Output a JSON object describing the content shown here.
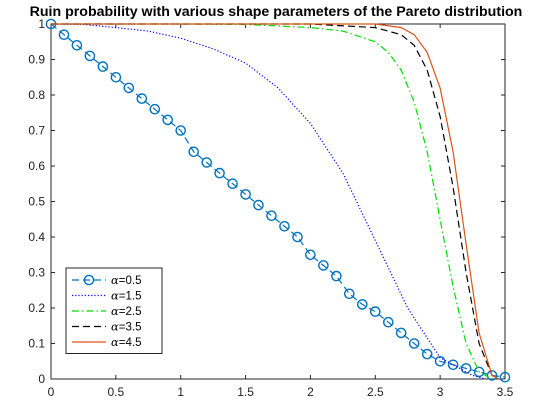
{
  "chart_data": {
    "type": "line",
    "title": "Ruin probability with various shape parameters of the Pareto distribution",
    "xlabel": "",
    "ylabel": "",
    "xlim": [
      0,
      3.5
    ],
    "ylim": [
      0,
      1
    ],
    "xticks": [
      "0",
      "0.5",
      "1",
      "1.5",
      "2",
      "2.5",
      "3",
      "3.5"
    ],
    "yticks": [
      "0",
      "0.1",
      "0.2",
      "0.3",
      "0.4",
      "0.5",
      "0.6",
      "0.7",
      "0.8",
      "0.9",
      "1"
    ],
    "grid": false,
    "legend_position": "bottom-left",
    "series": [
      {
        "name": "=0.5",
        "legend_symbol": "α",
        "color": "#0072BD",
        "line_style": "dashed",
        "marker": "circle",
        "x": [
          0,
          0.1,
          0.2,
          0.3,
          0.4,
          0.5,
          0.6,
          0.7,
          0.8,
          0.9,
          1.0,
          1.1,
          1.2,
          1.3,
          1.4,
          1.5,
          1.6,
          1.7,
          1.8,
          1.9,
          2.0,
          2.1,
          2.2,
          2.3,
          2.4,
          2.5,
          2.6,
          2.7,
          2.8,
          2.9,
          3.0,
          3.1,
          3.2,
          3.3,
          3.4,
          3.5
        ],
        "y": [
          1.0,
          0.97,
          0.94,
          0.91,
          0.88,
          0.85,
          0.82,
          0.79,
          0.76,
          0.73,
          0.7,
          0.64,
          0.61,
          0.58,
          0.55,
          0.52,
          0.49,
          0.46,
          0.43,
          0.4,
          0.35,
          0.32,
          0.29,
          0.24,
          0.21,
          0.19,
          0.16,
          0.13,
          0.1,
          0.07,
          0.05,
          0.04,
          0.03,
          0.02,
          0.01,
          0.005
        ]
      },
      {
        "name": "=1.5",
        "legend_symbol": "α",
        "color": "#0000FF",
        "line_style": "dotted",
        "marker": "none",
        "x": [
          0,
          0.25,
          0.5,
          0.75,
          1.0,
          1.25,
          1.5,
          1.75,
          2.0,
          2.25,
          2.5,
          2.75,
          3.0,
          3.25,
          3.35
        ],
        "y": [
          1.0,
          0.999,
          0.99,
          0.98,
          0.96,
          0.93,
          0.89,
          0.82,
          0.72,
          0.58,
          0.39,
          0.2,
          0.06,
          0.01,
          0.0
        ]
      },
      {
        "name": "=2.5",
        "legend_symbol": "α",
        "color": "#00DD00",
        "line_style": "dashdot",
        "marker": "none",
        "x": [
          0,
          0.5,
          1.0,
          1.5,
          2.0,
          2.25,
          2.5,
          2.6,
          2.7,
          2.8,
          2.9,
          3.0,
          3.1,
          3.2,
          3.3,
          3.4
        ],
        "y": [
          1.0,
          1.0,
          1.0,
          0.999,
          0.99,
          0.98,
          0.95,
          0.92,
          0.87,
          0.78,
          0.64,
          0.45,
          0.26,
          0.1,
          0.02,
          0.0
        ]
      },
      {
        "name": "=3.5",
        "legend_symbol": "α",
        "color": "#000000",
        "line_style": "dashed",
        "marker": "none",
        "x": [
          0,
          0.5,
          1.0,
          1.5,
          2.0,
          2.5,
          2.7,
          2.8,
          2.9,
          3.0,
          3.1,
          3.2,
          3.3,
          3.4,
          3.45
        ],
        "y": [
          1.0,
          1.0,
          1.0,
          1.0,
          1.0,
          0.99,
          0.97,
          0.94,
          0.87,
          0.74,
          0.54,
          0.3,
          0.1,
          0.01,
          0.0
        ]
      },
      {
        "name": "=4.5",
        "legend_symbol": "α",
        "color": "#D95319",
        "line_style": "solid",
        "marker": "none",
        "x": [
          0,
          0.5,
          1.0,
          1.5,
          2.0,
          2.5,
          2.7,
          2.8,
          2.9,
          3.0,
          3.1,
          3.2,
          3.3,
          3.4,
          3.45
        ],
        "y": [
          1.0,
          1.0,
          1.0,
          1.0,
          1.0,
          1.0,
          0.99,
          0.97,
          0.92,
          0.82,
          0.64,
          0.38,
          0.13,
          0.01,
          0.0
        ]
      }
    ]
  }
}
